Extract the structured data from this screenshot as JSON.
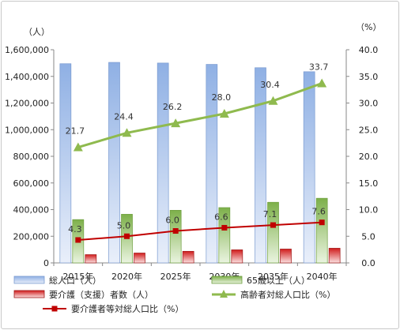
{
  "chart_data": {
    "type": "bar",
    "categories": [
      "2015年",
      "2020年",
      "2025年",
      "2030年",
      "2035年",
      "2040年"
    ],
    "series": [
      {
        "name": "総人口（人）",
        "kind": "bar",
        "axis": "left",
        "color": "#a4c0ea",
        "values": [
          1495000,
          1505000,
          1500000,
          1490000,
          1465000,
          1435000
        ]
      },
      {
        "name": "65歳以上（人）",
        "kind": "bar",
        "axis": "left",
        "color": "#8cbf5a",
        "values": [
          325000,
          365000,
          395000,
          415000,
          455000,
          485000
        ]
      },
      {
        "name": "要介護（支援）者数（人）",
        "kind": "bar",
        "axis": "left",
        "color": "#d42020",
        "values": [
          62000,
          74000,
          87000,
          98000,
          104000,
          110000
        ]
      },
      {
        "name": "高齢者対総人口比（%）",
        "kind": "line",
        "axis": "right",
        "color": "#8fba4e",
        "marker": "triangle",
        "values": [
          21.7,
          24.4,
          26.2,
          28.0,
          30.4,
          33.7
        ]
      },
      {
        "name": "要介護者等対総人口比（%）",
        "kind": "line",
        "axis": "right",
        "color": "#c00000",
        "marker": "square",
        "values": [
          4.3,
          5.0,
          6.0,
          6.6,
          7.1,
          7.6
        ]
      }
    ],
    "y_left": {
      "unit": "（人）",
      "min": 0,
      "max": 1600000,
      "step": 200000,
      "ticks": [
        "0",
        "200,000",
        "400,000",
        "600,000",
        "800,000",
        "1,000,000",
        "1,200,000",
        "1,400,000",
        "1,600,000"
      ]
    },
    "y_right": {
      "unit": "（%）",
      "min": 0,
      "max": 40,
      "step": 5,
      "ticks": [
        "0.0",
        "5.0",
        "10.0",
        "15.0",
        "20.0",
        "25.0",
        "30.0",
        "35.0",
        "40.0"
      ]
    },
    "grid": false,
    "legend_position": "bottom"
  }
}
